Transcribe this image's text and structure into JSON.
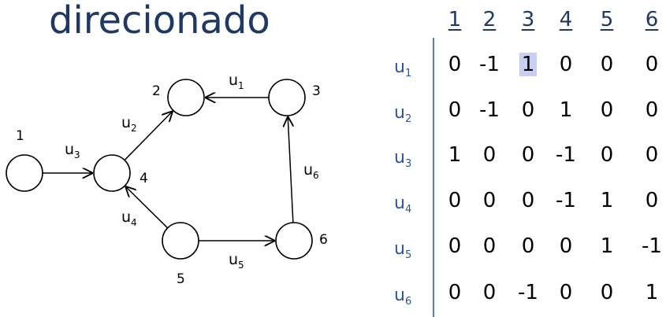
{
  "title": "direcionado",
  "graph": {
    "nodes": [
      {
        "id": "1",
        "label": "1"
      },
      {
        "id": "2",
        "label": "2"
      },
      {
        "id": "3",
        "label": "3"
      },
      {
        "id": "4",
        "label": "4"
      },
      {
        "id": "5",
        "label": "5"
      },
      {
        "id": "6",
        "label": "6"
      }
    ],
    "edges": [
      {
        "id": "u1",
        "label": "u",
        "sub": "1",
        "from": "3",
        "to": "2"
      },
      {
        "id": "u2",
        "label": "u",
        "sub": "2",
        "from": "4",
        "to": "2"
      },
      {
        "id": "u3",
        "label": "u",
        "sub": "3",
        "from": "1",
        "to": "4"
      },
      {
        "id": "u4",
        "label": "u",
        "sub": "4",
        "from": "5",
        "to": "4"
      },
      {
        "id": "u5",
        "label": "u",
        "sub": "5",
        "from": "5",
        "to": "6"
      },
      {
        "id": "u6",
        "label": "u",
        "sub": "6",
        "from": "6",
        "to": "3"
      }
    ]
  },
  "matrix": {
    "columns": [
      "1",
      "2",
      "3",
      "4",
      "5",
      "6"
    ],
    "rows": [
      {
        "label": "u",
        "sub": "1",
        "values": [
          "0",
          "-1",
          "1",
          "0",
          "0",
          "0"
        ]
      },
      {
        "label": "u",
        "sub": "2",
        "values": [
          "0",
          "-1",
          "0",
          "1",
          "0",
          "0"
        ]
      },
      {
        "label": "u",
        "sub": "3",
        "values": [
          "1",
          "0",
          "0",
          "-1",
          "0",
          "0"
        ]
      },
      {
        "label": "u",
        "sub": "4",
        "values": [
          "0",
          "0",
          "0",
          "-1",
          "1",
          "0"
        ]
      },
      {
        "label": "u",
        "sub": "5",
        "values": [
          "0",
          "0",
          "0",
          "0",
          "1",
          "-1"
        ]
      },
      {
        "label": "u",
        "sub": "6",
        "values": [
          "0",
          "0",
          "-1",
          "0",
          "0",
          "1"
        ]
      }
    ],
    "highlight": {
      "row": 0,
      "col": 2,
      "color": "#c9cff2"
    }
  },
  "colors": {
    "title": "#1f3864",
    "row_labels": "#2f5597",
    "divider": "#5b7ab5"
  }
}
